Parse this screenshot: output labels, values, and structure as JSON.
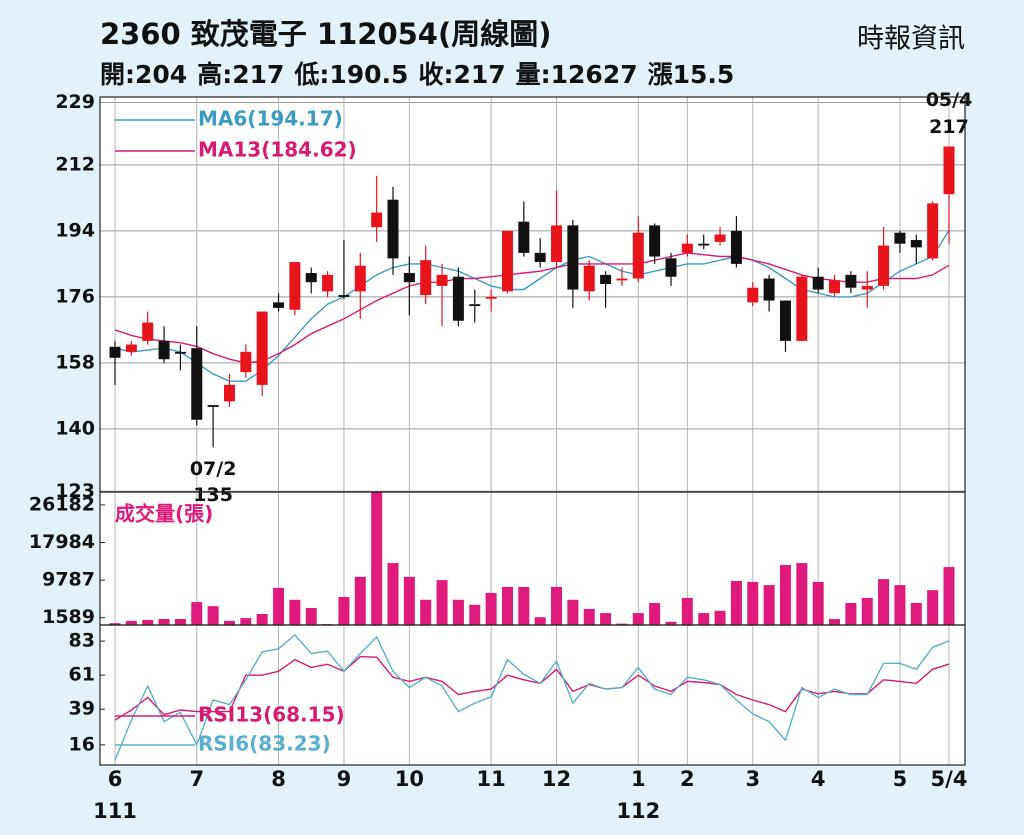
{
  "chart_data": [
    {
      "type": "candlestick",
      "title": "2360  致茂電子 112054(周線圖)",
      "source": "時報資訊",
      "stats": [
        {
          "label": "開:",
          "value": 204
        },
        {
          "label": "高:",
          "value": 217
        },
        {
          "label": "低:",
          "value": 190.5
        },
        {
          "label": "收:",
          "value": 217
        },
        {
          "label": "量:",
          "value": 12627
        },
        {
          "label": "漲",
          "value": 15.5
        }
      ],
      "ylim": [
        122.8,
        230.5
      ],
      "yticks": [
        123,
        140,
        158,
        176,
        194,
        212,
        229
      ],
      "grid": true,
      "up_color": "#e8141c",
      "down_color": "#111111",
      "open": [
        162.4,
        161,
        164,
        164,
        161,
        162,
        146.5,
        147.5,
        155.5,
        152,
        174.5,
        172.5,
        182.5,
        177.5,
        176.5,
        177.5,
        195,
        202.5,
        182.5,
        176.5,
        179,
        181.5,
        174,
        175.5,
        177.5,
        196.5,
        188,
        185.5,
        195.5,
        177.5,
        182,
        180.5,
        181,
        195.5,
        186.5,
        188,
        190.5,
        191,
        194,
        174.5,
        181,
        175,
        164,
        181.5,
        177,
        182,
        178,
        179,
        193.5,
        191.5,
        186.5,
        204
      ],
      "high": [
        164,
        164,
        172,
        168,
        163,
        168,
        146.5,
        155,
        163,
        172,
        177,
        185.5,
        184,
        183,
        191.5,
        188,
        209,
        206,
        187,
        190,
        185,
        184,
        178,
        178,
        194,
        202,
        192,
        205,
        197,
        186,
        183,
        184,
        198,
        196,
        188,
        193,
        193,
        195,
        198,
        180,
        182,
        175,
        182,
        184,
        182,
        183,
        183,
        195,
        194,
        193,
        202,
        217
      ],
      "low": [
        152,
        160,
        163,
        158,
        156,
        141,
        135,
        146,
        154,
        149,
        172,
        171,
        177,
        176,
        175.5,
        170,
        191,
        182,
        171,
        174,
        168,
        168,
        169,
        172,
        177,
        187,
        184,
        184,
        173,
        175,
        173,
        179,
        180,
        185,
        179,
        187,
        189,
        190,
        184,
        173.5,
        172,
        161,
        164,
        177,
        176,
        177,
        173,
        178,
        188,
        185,
        186,
        190.5
      ],
      "close": [
        159.4,
        163,
        169,
        159,
        160.5,
        142.5,
        146,
        152,
        161,
        172,
        173,
        185.5,
        180,
        182,
        176,
        184.5,
        199,
        186.5,
        180,
        186,
        182,
        169.5,
        173.5,
        176,
        194,
        188,
        185.5,
        195.5,
        178,
        184.5,
        179.5,
        181,
        193.5,
        187,
        181.5,
        190.5,
        190,
        193,
        185,
        178.5,
        175,
        164,
        181.5,
        178,
        180.5,
        178.5,
        179,
        190,
        190.5,
        189.5,
        201.5,
        217
      ],
      "series": [
        {
          "name": "MA6(194.17)",
          "color": "#3a9cc6",
          "values": [
            162,
            161,
            161.5,
            162,
            161,
            158,
            155,
            153,
            153,
            156,
            160,
            165,
            170,
            174,
            176,
            179,
            182,
            184,
            185,
            185,
            184,
            183,
            181,
            179,
            178,
            178,
            181,
            184,
            186,
            187,
            185,
            183,
            182,
            183,
            184,
            185,
            185,
            186,
            187,
            186,
            184,
            181,
            178,
            177,
            176,
            176,
            177,
            180,
            183,
            185,
            187,
            194.17
          ]
        },
        {
          "name": "MA13(184.62)",
          "color": "#d81b72",
          "values": [
            167,
            165.5,
            164.5,
            164,
            163.5,
            162.5,
            160.5,
            159,
            158,
            158.5,
            160.5,
            163,
            166,
            168,
            170,
            172.5,
            175,
            177,
            179,
            180,
            180,
            181,
            181,
            181.5,
            182,
            182.5,
            183,
            184,
            185,
            185,
            185,
            185,
            185,
            186,
            187,
            188,
            187.5,
            187,
            187,
            186,
            185,
            183.5,
            182,
            181,
            180.5,
            180,
            180,
            181,
            181,
            181,
            182,
            184.62
          ]
        }
      ],
      "annotations": [
        {
          "label": "05/4",
          "value": 217
        },
        {
          "label": "07/2",
          "value": 135
        }
      ]
    },
    {
      "type": "bar",
      "title": "成交量(張)",
      "ylim": [
        0,
        29000
      ],
      "yticks": [
        1589,
        9787,
        17984,
        26182
      ],
      "color": "#e0197d",
      "values": [
        400,
        900,
        1100,
        1300,
        1300,
        5000,
        4100,
        900,
        1500,
        2400,
        8100,
        5500,
        3700,
        200,
        6100,
        10500,
        29000,
        13500,
        10500,
        5500,
        9800,
        5500,
        4400,
        7000,
        8300,
        8300,
        1700,
        8300,
        5500,
        3500,
        2600,
        300,
        2600,
        4800,
        700,
        5900,
        2600,
        3100,
        9600,
        9400,
        8700,
        13100,
        13500,
        9400,
        1300,
        4800,
        5900,
        10000,
        8700,
        4800,
        7600,
        12627
      ]
    },
    {
      "type": "line",
      "ylim": [
        3,
        93.4
      ],
      "yticks": [
        16,
        39,
        61,
        83
      ],
      "categories": [
        "6",
        null,
        null,
        null,
        null,
        "7",
        null,
        null,
        null,
        null,
        "8",
        null,
        null,
        null,
        "9",
        null,
        null,
        null,
        "10",
        null,
        null,
        null,
        null,
        "11",
        null,
        null,
        null,
        "12",
        null,
        null,
        null,
        null,
        "1",
        null,
        null,
        "2",
        null,
        null,
        null,
        "3",
        null,
        null,
        null,
        "4",
        null,
        null,
        null,
        null,
        "5",
        null,
        null,
        "5/4"
      ],
      "year_categories": [
        "111",
        null,
        null,
        null,
        null,
        null,
        null,
        null,
        null,
        null,
        null,
        null,
        null,
        null,
        null,
        null,
        null,
        null,
        null,
        null,
        null,
        null,
        null,
        null,
        null,
        null,
        null,
        null,
        null,
        null,
        null,
        null,
        "112",
        null,
        null,
        null,
        null,
        null,
        null,
        null,
        null,
        null,
        null,
        null,
        null,
        null,
        null,
        null,
        null,
        null,
        null,
        null
      ],
      "series": [
        {
          "name": "RSI13(68.15)",
          "color": "#d81b72",
          "values": [
            32,
            38.5,
            46.6,
            35.5,
            38.5,
            37.5,
            37.5,
            37.5,
            61,
            61,
            63.5,
            71,
            66,
            68,
            63.5,
            73,
            72.6,
            59.6,
            57,
            59.6,
            57,
            48.5,
            50.5,
            52,
            61,
            58,
            55.7,
            64.8,
            50.5,
            55,
            52,
            53,
            61,
            54,
            50.5,
            57,
            56.3,
            55,
            48.5,
            45,
            42,
            37.5,
            52,
            49,
            50.5,
            49,
            49,
            58,
            57,
            55.7,
            64.8,
            68.15
          ]
        },
        {
          "name": "RSI6(83.23)",
          "color": "#5aaed0",
          "values": [
            6,
            32,
            54,
            31,
            37,
            16,
            45,
            42,
            58,
            76,
            78,
            87,
            75,
            76.5,
            63.5,
            75,
            85.6,
            63.5,
            53,
            59.6,
            54,
            37.5,
            43,
            47,
            71,
            61.5,
            55.7,
            70,
            43,
            55.7,
            52,
            53,
            66,
            52,
            48.5,
            59.6,
            58,
            55,
            45,
            36,
            31,
            19,
            53,
            46.6,
            52,
            48.5,
            48.5,
            68.7,
            68.7,
            64.8,
            79,
            83.23
          ]
        }
      ]
    }
  ]
}
